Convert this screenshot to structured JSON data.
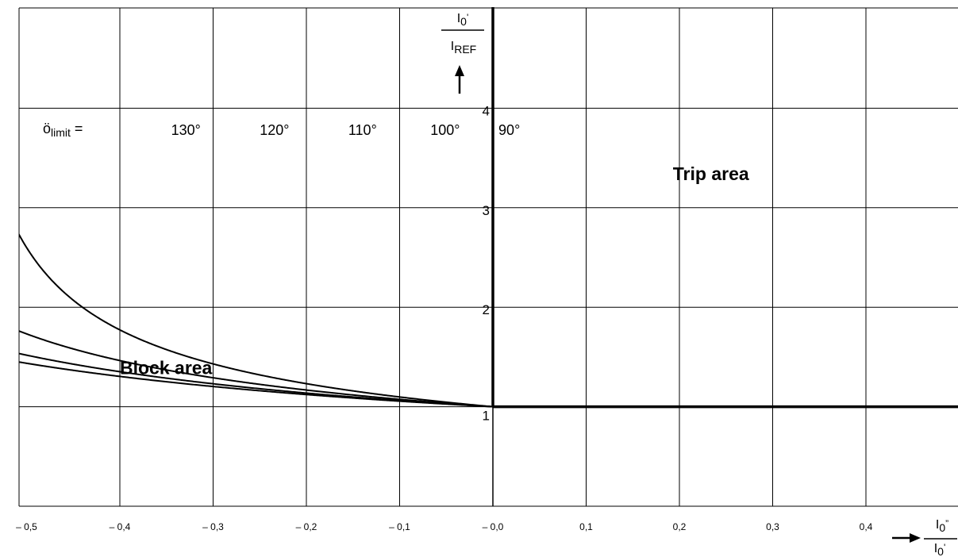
{
  "chart_data": {
    "type": "line",
    "title": "",
    "xlabel": {
      "numerator_main": "I",
      "numerator_sub": "0",
      "numerator_suffix": "”",
      "denominator_main": "I",
      "denominator_sub": "0",
      "denominator_suffix": "'"
    },
    "ylabel": {
      "numerator_main": "I",
      "numerator_sub": "0",
      "numerator_suffix": "'",
      "denominator_main": "I",
      "denominator_sub": "REF",
      "denominator_suffix": ""
    },
    "xlim": [
      -0.5,
      0.5
    ],
    "ylim": [
      0,
      5
    ],
    "grid": true,
    "x_ticks": [
      -0.5,
      -0.4,
      -0.3,
      -0.2,
      -0.1,
      0.0,
      0.1,
      0.2,
      0.3,
      0.4
    ],
    "x_tick_labels": [
      "– 0,5",
      "– 0,4",
      "– 0,3",
      "– 0,2",
      "– 0,1",
      "– 0,0",
      "0,1",
      "0,2",
      "0,3",
      "0,4"
    ],
    "y_tick_labels": [
      {
        "y": 1,
        "label": "1"
      },
      {
        "y": 2,
        "label": "2"
      },
      {
        "y": 3,
        "label": "3"
      },
      {
        "y": 4,
        "label": "4"
      }
    ],
    "limit_label": {
      "main": "ö",
      "sub": "limit",
      "suffix": " ="
    },
    "series": [
      {
        "label": "130°",
        "angle": 130,
        "label_x": -0.345,
        "label_y": 3.78
      },
      {
        "label": "120°",
        "angle": 120,
        "label_x": -0.25,
        "label_y": 3.78
      },
      {
        "label": "110°",
        "angle": 110,
        "label_x": -0.155,
        "label_y": 3.78
      },
      {
        "label": "100°",
        "angle": 100,
        "label_x": -0.067,
        "label_y": 3.78
      },
      {
        "label": "90°",
        "angle": 90,
        "label_x": 0.006,
        "label_y": 3.78
      }
    ],
    "areas": [
      {
        "label": "Trip area",
        "x": 0.193,
        "y": 3.34
      },
      {
        "label": "Block area",
        "x": -0.4,
        "y": 1.39
      }
    ]
  }
}
